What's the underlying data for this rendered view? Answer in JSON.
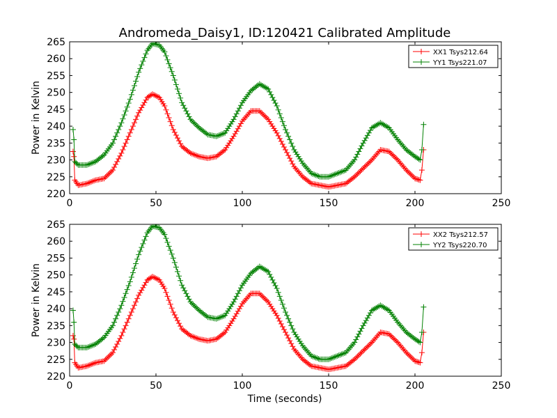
{
  "figure": {
    "title": "Andromeda_Daisy1, ID:120421 Calibrated Amplitude",
    "xlabel": "Time (seconds)"
  },
  "colors": {
    "xx": "#ff0000",
    "yy": "#008000"
  },
  "chart_data": [
    {
      "type": "line",
      "ylabel": "Power in Kelvin",
      "xlim": [
        0,
        250
      ],
      "ylim": [
        220,
        265
      ],
      "x_ticks": [
        "0",
        "50",
        "100",
        "150",
        "200",
        "250"
      ],
      "y_ticks": [
        "220",
        "225",
        "230",
        "235",
        "240",
        "245",
        "250",
        "255",
        "260",
        "265"
      ],
      "legend_position": "top-right",
      "series": [
        {
          "name": "XX1 Tsys212.64",
          "color": "#ff0000",
          "x": [
            2,
            2.5,
            3,
            5,
            10,
            15,
            20,
            25,
            30,
            35,
            40,
            45,
            48,
            52,
            55,
            60,
            65,
            70,
            75,
            80,
            85,
            90,
            95,
            100,
            105,
            110,
            115,
            120,
            125,
            130,
            135,
            140,
            145,
            150,
            155,
            160,
            165,
            170,
            175,
            180,
            185,
            190,
            195,
            200,
            203,
            204,
            205
          ],
          "y": [
            232.5,
            231,
            224,
            222.5,
            223,
            224,
            224.5,
            227,
            232,
            238,
            244,
            248.5,
            249.5,
            248.5,
            246,
            239,
            234,
            232,
            231,
            230.5,
            231,
            233,
            237,
            241.5,
            244.5,
            244.5,
            242,
            238,
            233,
            228,
            225,
            223,
            222.5,
            222,
            222.5,
            223,
            225,
            227.5,
            230,
            233,
            232.5,
            230,
            227,
            224.5,
            224,
            227,
            233
          ]
        },
        {
          "name": "YY1 Tsys221.07",
          "color": "#008000",
          "x": [
            2,
            2.5,
            3,
            5,
            10,
            15,
            20,
            25,
            30,
            35,
            40,
            45,
            48,
            52,
            55,
            60,
            65,
            70,
            75,
            80,
            85,
            90,
            95,
            100,
            105,
            110,
            115,
            120,
            125,
            130,
            135,
            140,
            145,
            150,
            155,
            160,
            165,
            170,
            175,
            180,
            185,
            190,
            195,
            200,
            203,
            204,
            205
          ],
          "y": [
            239,
            236,
            229.5,
            228.5,
            228.5,
            229.5,
            231.5,
            235,
            241,
            248,
            256,
            262.5,
            264.5,
            264,
            262,
            255,
            247,
            242,
            239.5,
            237.5,
            237,
            238,
            242,
            247,
            250.5,
            252.5,
            251,
            246,
            239,
            233,
            229,
            226,
            225,
            225,
            226,
            227,
            230,
            235,
            239.5,
            241,
            239.5,
            236,
            233,
            231,
            230,
            233,
            240.5
          ]
        }
      ]
    },
    {
      "type": "line",
      "ylabel": "Power in Kelvin",
      "xlim": [
        0,
        250
      ],
      "ylim": [
        220,
        265
      ],
      "x_ticks": [
        "0",
        "50",
        "100",
        "150",
        "200",
        "250"
      ],
      "y_ticks": [
        "220",
        "225",
        "230",
        "235",
        "240",
        "245",
        "250",
        "255",
        "260",
        "265"
      ],
      "legend_position": "top-right",
      "series": [
        {
          "name": "XX2 Tsys212.57",
          "color": "#ff0000",
          "x": [
            2,
            2.5,
            3,
            5,
            10,
            15,
            20,
            25,
            30,
            35,
            40,
            45,
            48,
            52,
            55,
            60,
            65,
            70,
            75,
            80,
            85,
            90,
            95,
            100,
            105,
            110,
            115,
            120,
            125,
            130,
            135,
            140,
            145,
            150,
            155,
            160,
            165,
            170,
            175,
            180,
            185,
            190,
            195,
            200,
            203,
            204,
            205
          ],
          "y": [
            232,
            231,
            224,
            222.5,
            223,
            224,
            224.5,
            227,
            232,
            238,
            244,
            248.5,
            249.5,
            248.5,
            246,
            239,
            234,
            232,
            231,
            230.5,
            231,
            233,
            237,
            241.5,
            244.5,
            244.5,
            242,
            238,
            233,
            228,
            225,
            223,
            222.5,
            222,
            222.5,
            223,
            225,
            227.5,
            230,
            233,
            232.5,
            230,
            227,
            224.5,
            224,
            227,
            233
          ]
        },
        {
          "name": "YY2 Tsys220.70",
          "color": "#008000",
          "x": [
            2,
            2.5,
            3,
            5,
            10,
            15,
            20,
            25,
            30,
            35,
            40,
            45,
            48,
            52,
            55,
            60,
            65,
            70,
            75,
            80,
            85,
            90,
            95,
            100,
            105,
            110,
            115,
            120,
            125,
            130,
            135,
            140,
            145,
            150,
            155,
            160,
            165,
            170,
            175,
            180,
            185,
            190,
            195,
            200,
            203,
            204,
            205
          ],
          "y": [
            239.5,
            236,
            229.5,
            228.5,
            228.5,
            229.5,
            231.5,
            235,
            241,
            248,
            256,
            262.5,
            264.5,
            264,
            262,
            255,
            247,
            242,
            239.5,
            237.5,
            237,
            238,
            242,
            247,
            250.5,
            252.5,
            251,
            246,
            239,
            233,
            229,
            226,
            225,
            225,
            226,
            227,
            230,
            235,
            239.5,
            241,
            239.5,
            236,
            233,
            231,
            230,
            233,
            240.5
          ]
        }
      ]
    }
  ]
}
